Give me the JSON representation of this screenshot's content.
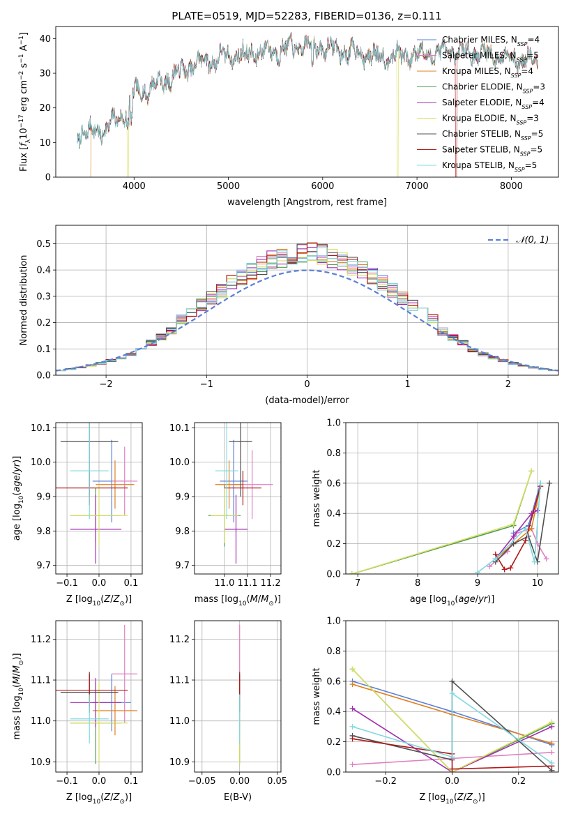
{
  "figure_title": "PLATE=0519, MJD=52283, FIBERID=0136, z=0.111",
  "colors": [
    "#5a7fd6",
    "#e080c0",
    "#e07f1f",
    "#4f9a5a",
    "#a030b0",
    "#d8e060",
    "#505050",
    "#b01818",
    "#80d8e0"
  ],
  "chart_data": [
    {
      "id": "spectrum",
      "type": "line",
      "title": "PLATE=0519, MJD=52283, FIBERID=0136, z=0.111",
      "xlabel": "wavelength [Angstrom, rest frame]",
      "ylabel": "Flux [f_λ 10^-17 erg cm^-2 s^-1 A^-1]",
      "xlim": [
        3170,
        8500
      ],
      "ylim": [
        0,
        43.5
      ],
      "xticks": [
        4000,
        5000,
        6000,
        7000,
        8000
      ],
      "yticks": [
        0,
        10,
        20,
        30,
        40
      ],
      "grid": false,
      "legend_position": "top-right",
      "continuum": {
        "x": [
          3400,
          3500,
          3700,
          3850,
          3950,
          4000,
          4200,
          4400,
          4600,
          4800,
          5000,
          5300,
          5500,
          5800,
          6000,
          6300,
          6600,
          6800,
          7000,
          7300,
          7600,
          7900,
          8280
        ],
        "y": [
          13,
          12.5,
          14,
          17,
          21,
          24,
          26,
          29,
          32,
          34,
          35,
          36,
          36.5,
          38,
          37.5,
          36,
          35,
          35,
          35.5,
          36,
          36,
          35,
          33
        ]
      },
      "series": [
        {
          "name": "Chabrier MILES, N_SSP=4",
          "label_main": "Chabrier MILES, N",
          "label_sub": "SSP",
          "label_tail": "=4"
        },
        {
          "name": "Salpeter MILES, N_SSP=5",
          "label_main": "Salpeter MILES, N",
          "label_sub": "SSP",
          "label_tail": "=5"
        },
        {
          "name": "Kroupa MILES, N_SSP=4",
          "label_main": "Kroupa MILES, N",
          "label_sub": "SSP",
          "label_tail": "=4"
        },
        {
          "name": "Chabrier ELODIE, N_SSP=3",
          "label_main": "Chabrier ELODIE, N",
          "label_sub": "SSP",
          "label_tail": "=3"
        },
        {
          "name": "Salpeter ELODIE, N_SSP=4",
          "label_main": "Salpeter ELODIE, N",
          "label_sub": "SSP",
          "label_tail": "=4"
        },
        {
          "name": "Kroupa ELODIE, N_SSP=3",
          "label_main": "Kroupa ELODIE, N",
          "label_sub": "SSP",
          "label_tail": "=3"
        },
        {
          "name": "Chabrier STELIB, N_SSP=5",
          "label_main": "Chabrier STELIB, N",
          "label_sub": "SSP",
          "label_tail": "=5"
        },
        {
          "name": "Salpeter STELIB, N_SSP=5",
          "label_main": "Salpeter STELIB, N",
          "label_sub": "SSP",
          "label_tail": "=5"
        },
        {
          "name": "Kroupa STELIB, N_SSP=5",
          "label_main": "Kroupa STELIB, N",
          "label_sub": "SSP",
          "label_tail": "=5"
        }
      ],
      "drops": [
        {
          "series": 2,
          "x_start": 3530,
          "x_end": 3540
        },
        {
          "series": 5,
          "x_start": 3930,
          "x_end": 3940
        },
        {
          "series": 5,
          "x_start": 6790,
          "x_end": 6800
        },
        {
          "series": 7,
          "x_start": 7410,
          "x_end": 7420
        }
      ]
    },
    {
      "id": "residuals",
      "type": "histogram",
      "xlabel": "(data-model)/error",
      "ylabel": "Normed distribution",
      "xlim": [
        -2.5,
        2.5
      ],
      "ylim": [
        0,
        0.57
      ],
      "xticks": [
        -2,
        -1,
        0,
        1,
        2
      ],
      "yticks": [
        0.0,
        0.1,
        0.2,
        0.3,
        0.4,
        0.5
      ],
      "grid": true,
      "legend_position": "top-right",
      "legend_label": "𝒩(0, 1)",
      "bin_edges_start": -2.5,
      "bin_width": 0.1,
      "bins": 50
    },
    {
      "id": "age-vs-Z",
      "type": "scatter-errorbar",
      "xlabel": "Z [log10(Z/Z⊙)]",
      "ylabel": "age [log10(age/yr)]",
      "xlim": [
        -0.135,
        0.135
      ],
      "ylim": [
        9.675,
        10.115
      ],
      "xticks": [
        -0.1,
        0.0,
        0.1
      ],
      "yticks": [
        9.7,
        9.8,
        9.9,
        10.0,
        10.1
      ],
      "grid": true,
      "points": [
        {
          "series": 0,
          "x": 0.04,
          "y": 9.945,
          "xerr": 0.06,
          "yerr": 0.12
        },
        {
          "series": 1,
          "x": 0.08,
          "y": 9.945,
          "xerr": 0.04,
          "yerr": 0.1
        },
        {
          "series": 2,
          "x": 0.05,
          "y": 9.935,
          "xerr": 0.06,
          "yerr": 0.07
        },
        {
          "series": 3,
          "x": -0.01,
          "y": 9.845,
          "xerr": 0.08,
          "yerr": 0.08
        },
        {
          "series": 4,
          "x": -0.01,
          "y": 9.805,
          "xerr": 0.08,
          "yerr": 0.1
        },
        {
          "series": 5,
          "x": 0.0,
          "y": 9.845,
          "xerr": 0.09,
          "yerr": 0.09
        },
        {
          "series": 6,
          "x": -0.03,
          "y": 10.06,
          "xerr": 0.09,
          "yerr": 0.16
        },
        {
          "series": 7,
          "x": -0.03,
          "y": 9.925,
          "xerr": 0.12,
          "yerr": 0.05
        },
        {
          "series": 8,
          "x": -0.03,
          "y": 9.975,
          "xerr": 0.06,
          "yerr": 0.14
        }
      ]
    },
    {
      "id": "age-vs-mass",
      "type": "scatter-errorbar",
      "xlabel": "mass [log10(M/M⊙)]",
      "ylabel": "",
      "xlim": [
        10.87,
        11.245
      ],
      "ylim": [
        9.675,
        10.115
      ],
      "xticks": [
        11.0,
        11.1,
        11.2
      ],
      "yticks": [
        9.7,
        9.8,
        9.9,
        10.0,
        10.1
      ],
      "grid": true,
      "points": [
        {
          "series": 0,
          "x": 11.04,
          "y": 9.945,
          "xerr": 0.06,
          "yerr": 0.12
        },
        {
          "series": 1,
          "x": 11.12,
          "y": 9.935,
          "xerr": 0.09,
          "yerr": 0.1
        },
        {
          "series": 2,
          "x": 11.02,
          "y": 9.935,
          "xerr": 0.06,
          "yerr": 0.07
        },
        {
          "series": 3,
          "x": 11.0,
          "y": 9.845,
          "xerr": 0.07,
          "yerr": 0.09
        },
        {
          "series": 4,
          "x": 11.05,
          "y": 9.805,
          "xerr": 0.05,
          "yerr": 0.1
        },
        {
          "series": 5,
          "x": 11.0,
          "y": 9.845,
          "xerr": 0.06,
          "yerr": 0.08
        },
        {
          "series": 6,
          "x": 11.07,
          "y": 10.06,
          "xerr": 0.05,
          "yerr": 0.16
        },
        {
          "series": 7,
          "x": 11.08,
          "y": 9.925,
          "xerr": 0.08,
          "yerr": 0.05
        },
        {
          "series": 8,
          "x": 11.01,
          "y": 9.975,
          "xerr": 0.05,
          "yerr": 0.14
        }
      ]
    },
    {
      "id": "weight-vs-age",
      "type": "line",
      "xlabel": "age [log10(age/yr)]",
      "ylabel": "mass weight",
      "xlim": [
        6.8,
        10.35
      ],
      "ylim": [
        0,
        1.0
      ],
      "xticks": [
        7,
        8,
        9,
        10
      ],
      "yticks": [
        0.0,
        0.2,
        0.4,
        0.6,
        0.8,
        1.0
      ],
      "grid": true,
      "series": [
        {
          "series": 0,
          "x": [
            9.6,
            9.85,
            10.05
          ],
          "y": [
            0.27,
            0.32,
            0.6
          ]
        },
        {
          "series": 1,
          "x": [
            9.2,
            9.5,
            9.65,
            9.9,
            10.0,
            10.15
          ],
          "y": [
            0.05,
            0.15,
            0.27,
            0.3,
            0.2,
            0.1
          ]
        },
        {
          "series": 2,
          "x": [
            9.3,
            9.6,
            9.9,
            10.05
          ],
          "y": [
            0.1,
            0.2,
            0.3,
            0.58
          ]
        },
        {
          "series": 3,
          "x": [
            6.9,
            9.6,
            9.9
          ],
          "y": [
            0.0,
            0.32,
            0.68
          ]
        },
        {
          "series": 4,
          "x": [
            9.3,
            9.6,
            9.9,
            10.0
          ],
          "y": [
            0.1,
            0.25,
            0.4,
            0.42
          ]
        },
        {
          "series": 5,
          "x": [
            6.9,
            9.6,
            9.9
          ],
          "y": [
            0.0,
            0.33,
            0.68
          ]
        },
        {
          "series": 6,
          "x": [
            9.3,
            9.6,
            9.85,
            10.0,
            10.2
          ],
          "y": [
            0.08,
            0.2,
            0.25,
            0.08,
            0.6
          ]
        },
        {
          "series": 7,
          "x": [
            9.3,
            9.45,
            9.55,
            9.8,
            10.05
          ],
          "y": [
            0.13,
            0.03,
            0.04,
            0.22,
            0.58
          ]
        },
        {
          "series": 8,
          "x": [
            9.0,
            9.3,
            9.8,
            9.95,
            10.05
          ],
          "y": [
            0.01,
            0.1,
            0.3,
            0.08,
            0.6
          ]
        }
      ]
    },
    {
      "id": "mass-vs-Z",
      "type": "scatter-errorbar",
      "xlabel": "Z [log10(Z/Z⊙)]",
      "ylabel": "mass [log10(M/M⊙)]",
      "xlim": [
        -0.135,
        0.135
      ],
      "ylim": [
        10.875,
        11.245
      ],
      "xticks": [
        -0.1,
        0.0,
        0.1
      ],
      "yticks": [
        10.9,
        11.0,
        11.1,
        11.2
      ],
      "grid": true,
      "points": [
        {
          "series": 0,
          "x": 0.04,
          "y": 11.045,
          "xerr": 0.06,
          "yerr": 0.07
        },
        {
          "series": 1,
          "x": 0.08,
          "y": 11.115,
          "xerr": 0.04,
          "yerr": 0.12
        },
        {
          "series": 2,
          "x": 0.05,
          "y": 11.025,
          "xerr": 0.07,
          "yerr": 0.06
        },
        {
          "series": 3,
          "x": -0.01,
          "y": 10.995,
          "xerr": 0.08,
          "yerr": 0.1
        },
        {
          "series": 4,
          "x": -0.01,
          "y": 11.045,
          "xerr": 0.08,
          "yerr": 0.06
        },
        {
          "series": 5,
          "x": 0.0,
          "y": 10.995,
          "xerr": 0.09,
          "yerr": 0.1
        },
        {
          "series": 6,
          "x": -0.03,
          "y": 11.07,
          "xerr": 0.09,
          "yerr": 0.05
        },
        {
          "series": 7,
          "x": -0.03,
          "y": 11.075,
          "xerr": 0.12,
          "yerr": 0.04
        },
        {
          "series": 8,
          "x": -0.03,
          "y": 11.005,
          "xerr": 0.06,
          "yerr": 0.06
        }
      ]
    },
    {
      "id": "mass-vs-EBV",
      "type": "scatter-errorbar",
      "xlabel": "E(B-V)",
      "ylabel": "",
      "xlim": [
        -0.06,
        0.055
      ],
      "ylim": [
        10.875,
        11.245
      ],
      "xticks": [
        -0.05,
        0.0,
        0.05
      ],
      "yticks": [
        10.9,
        11.0,
        11.1,
        11.2
      ],
      "grid": true,
      "points": [
        {
          "series": 0,
          "x": 0.0,
          "y": 11.045,
          "xerr": 0.0,
          "yerr": 0.07
        },
        {
          "series": 1,
          "x": 0.0,
          "y": 11.115,
          "xerr": 0.0,
          "yerr": 0.12
        },
        {
          "series": 2,
          "x": 0.0,
          "y": 11.025,
          "xerr": 0.0,
          "yerr": 0.06
        },
        {
          "series": 3,
          "x": 0.0,
          "y": 10.995,
          "xerr": 0.0,
          "yerr": 0.1
        },
        {
          "series": 4,
          "x": 0.0,
          "y": 11.045,
          "xerr": 0.0,
          "yerr": 0.06
        },
        {
          "series": 5,
          "x": 0.0,
          "y": 10.995,
          "xerr": 0.0,
          "yerr": 0.1
        },
        {
          "series": 6,
          "x": 0.0,
          "y": 11.07,
          "xerr": 0.0,
          "yerr": 0.05
        },
        {
          "series": 7,
          "x": 0.0,
          "y": 11.075,
          "xerr": 0.0,
          "yerr": 0.04
        },
        {
          "series": 8,
          "x": 0.0,
          "y": 11.005,
          "xerr": 0.0,
          "yerr": 0.06
        }
      ]
    },
    {
      "id": "weight-vs-Z",
      "type": "line",
      "xlabel": "Z [log10(Z/Z⊙)]",
      "ylabel": "mass weight",
      "xlim": [
        -0.32,
        0.32
      ],
      "ylim": [
        0,
        1.0
      ],
      "xticks": [
        -0.2,
        0.0,
        0.2
      ],
      "yticks": [
        0.0,
        0.2,
        0.4,
        0.6,
        0.8,
        1.0
      ],
      "grid": true,
      "series": [
        {
          "series": 0,
          "x": [
            -0.3,
            0.0,
            0.3
          ],
          "y": [
            0.6,
            0.4,
            0.18
          ]
        },
        {
          "series": 1,
          "x": [
            -0.3,
            0.0,
            0.3
          ],
          "y": [
            0.05,
            0.09,
            0.13
          ]
        },
        {
          "series": 2,
          "x": [
            -0.3,
            0.0,
            0.3
          ],
          "y": [
            0.58,
            0.38,
            0.19
          ]
        },
        {
          "series": 3,
          "x": [
            -0.3,
            0.0,
            0.3
          ],
          "y": [
            0.68,
            0.0,
            0.32
          ]
        },
        {
          "series": 4,
          "x": [
            -0.3,
            0.0,
            0.3
          ],
          "y": [
            0.42,
            0.0,
            0.3
          ]
        },
        {
          "series": 5,
          "x": [
            -0.3,
            0.0,
            0.3
          ],
          "y": [
            0.68,
            0.0,
            0.33
          ]
        },
        {
          "series": 6,
          "x": [
            -0.3,
            0.0,
            0.0,
            0.3
          ],
          "y": [
            0.24,
            0.08,
            0.6,
            0.01
          ]
        },
        {
          "series": 7,
          "x": [
            -0.3,
            0.0,
            0.0,
            0.3
          ],
          "y": [
            0.22,
            0.12,
            0.02,
            0.04
          ]
        },
        {
          "series": 8,
          "x": [
            -0.3,
            0.0,
            0.0,
            0.3
          ],
          "y": [
            0.3,
            0.1,
            0.52,
            0.06
          ]
        }
      ]
    }
  ]
}
